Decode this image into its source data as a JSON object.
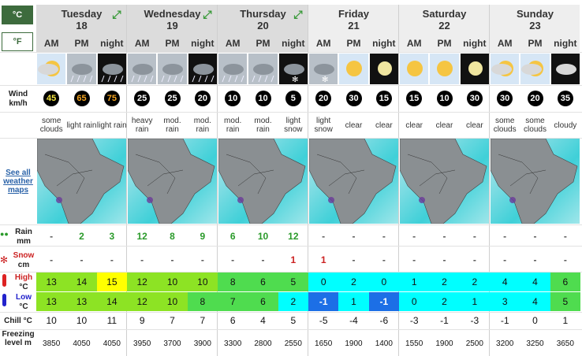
{
  "units": {
    "celsius": "°C",
    "fahrenheit": "°F"
  },
  "labels": {
    "wind": "Wind",
    "wind_unit": "km/h",
    "maps_link": "See all weather maps",
    "rain": "Rain",
    "rain_unit": "mm",
    "snow": "Snow",
    "snow_unit": "cm",
    "high": "High",
    "high_unit": "°C",
    "low": "Low",
    "low_unit": "°C",
    "chill": "Chill °C",
    "freezing": "Freezing level m"
  },
  "days": [
    {
      "name": "Tuesday",
      "date": "18"
    },
    {
      "name": "Wednesday",
      "date": "19"
    },
    {
      "name": "Thursday",
      "date": "20"
    },
    {
      "name": "Friday",
      "date": "21"
    },
    {
      "name": "Saturday",
      "date": "22"
    },
    {
      "name": "Sunday",
      "date": "23"
    }
  ],
  "periods": [
    "AM",
    "PM",
    "night",
    "AM",
    "PM",
    "night",
    "AM",
    "PM",
    "night",
    "AM",
    "PM",
    "night",
    "AM",
    "PM",
    "night",
    "AM",
    "PM",
    "night"
  ],
  "wind": [
    45,
    65,
    75,
    25,
    25,
    20,
    10,
    10,
    5,
    20,
    30,
    15,
    15,
    10,
    30,
    30,
    20,
    35
  ],
  "conditions": [
    "some clouds",
    "light rain",
    "light rain",
    "heavy rain",
    "mod. rain",
    "mod. rain",
    "mod. rain",
    "mod. rain",
    "light snow",
    "light snow",
    "clear",
    "clear",
    "clear",
    "clear",
    "clear",
    "some clouds",
    "some clouds",
    "cloudy"
  ],
  "rain": [
    "-",
    2,
    3,
    12,
    8,
    9,
    6,
    10,
    12,
    "-",
    "-",
    "-",
    "-",
    "-",
    "-",
    "-",
    "-",
    "-"
  ],
  "snow": [
    "-",
    "-",
    "-",
    "-",
    "-",
    "-",
    "-",
    "-",
    1,
    1,
    "-",
    "-",
    "-",
    "-",
    "-",
    "-",
    "-",
    "-"
  ],
  "high": [
    13,
    14,
    15,
    12,
    10,
    10,
    8,
    6,
    5,
    0,
    2,
    0,
    1,
    2,
    2,
    4,
    4,
    6
  ],
  "low": [
    13,
    13,
    14,
    12,
    10,
    8,
    7,
    6,
    2,
    -1,
    1,
    -1,
    0,
    2,
    1,
    3,
    4,
    5
  ],
  "chill": [
    10,
    10,
    11,
    9,
    7,
    7,
    6,
    4,
    5,
    -5,
    -4,
    -6,
    -3,
    -1,
    -3,
    -1,
    0,
    1
  ],
  "freezing": [
    3850,
    4050,
    4050,
    3950,
    3700,
    3900,
    3300,
    2800,
    2550,
    1650,
    1900,
    1400,
    1550,
    1900,
    2500,
    3200,
    3250,
    3650
  ]
}
